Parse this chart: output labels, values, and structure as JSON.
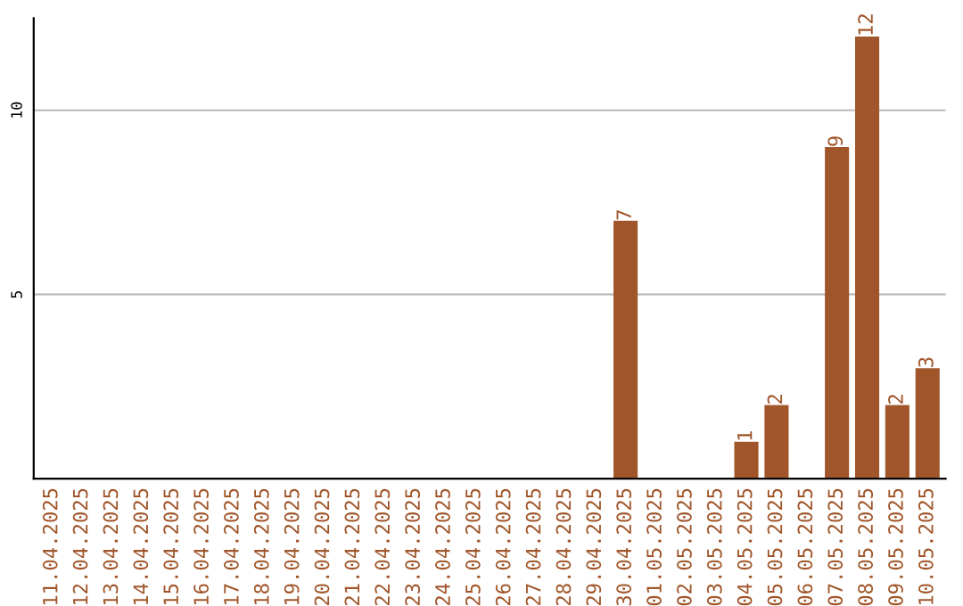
{
  "chart_data": {
    "type": "bar",
    "categories": [
      "11.04.2025",
      "12.04.2025",
      "13.04.2025",
      "14.04.2025",
      "15.04.2025",
      "16.04.2025",
      "17.04.2025",
      "18.04.2025",
      "19.04.2025",
      "20.04.2025",
      "21.04.2025",
      "22.04.2025",
      "23.04.2025",
      "24.04.2025",
      "25.04.2025",
      "26.04.2025",
      "27.04.2025",
      "28.04.2025",
      "29.04.2025",
      "30.04.2025",
      "01.05.2025",
      "02.05.2025",
      "03.05.2025",
      "04.05.2025",
      "05.05.2025",
      "06.05.2025",
      "07.05.2025",
      "08.05.2025",
      "09.05.2025",
      "10.05.2025"
    ],
    "values": [
      0,
      0,
      0,
      0,
      0,
      0,
      0,
      0,
      0,
      0,
      0,
      0,
      0,
      0,
      0,
      0,
      0,
      0,
      0,
      7,
      0,
      0,
      0,
      1,
      2,
      0,
      9,
      12,
      2,
      3
    ],
    "value_labels": [
      null,
      null,
      null,
      null,
      null,
      null,
      null,
      null,
      null,
      null,
      null,
      null,
      null,
      null,
      null,
      null,
      null,
      null,
      null,
      "7",
      null,
      null,
      null,
      "1",
      "2",
      null,
      "9",
      "12",
      "2",
      "3"
    ],
    "color": "#a0562a",
    "ylim": [
      0,
      12.5
    ],
    "yticks": [
      5,
      10
    ],
    "grid": "y"
  }
}
